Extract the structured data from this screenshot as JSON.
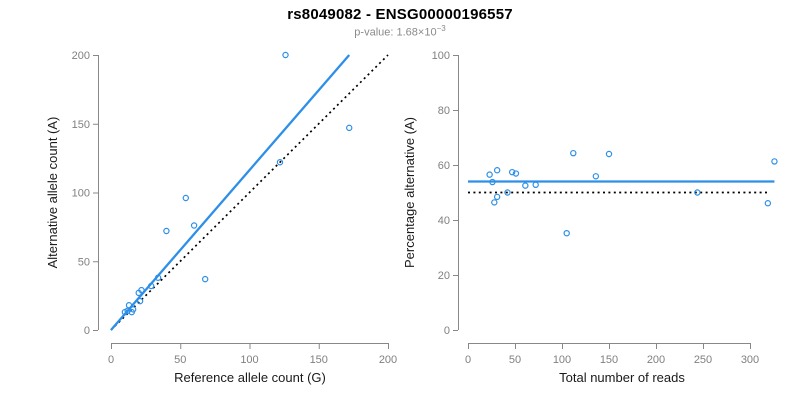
{
  "header": {
    "title": "rs8049082 - ENSG00000196557",
    "subtitle_prefix": "p-value: 1.68×10",
    "subtitle_exponent": "−3",
    "p_value": "1.68×10^-3"
  },
  "colors": {
    "blue": "#2D8FE8",
    "dotted_black": "#000000",
    "axis_gray": "#888888",
    "tick_label_gray": "#808080",
    "axis_title_color": "#1a1a1a",
    "subtitle_gray": "#8a8a8a"
  },
  "chart_data": [
    {
      "type": "scatter",
      "title": "",
      "xlabel": "Reference allele count (G)",
      "ylabel": "Alternative allele count (A)",
      "xlim": [
        0,
        200
      ],
      "ylim": [
        0,
        200
      ],
      "xticks": [
        0,
        50,
        100,
        150,
        200
      ],
      "yticks": [
        0,
        50,
        100,
        150,
        200
      ],
      "grid": false,
      "legend": "none",
      "marker": "open-circle",
      "x": [
        10,
        12,
        15,
        16,
        13,
        21,
        20,
        22,
        29,
        34,
        40,
        54,
        60,
        68,
        122,
        126,
        172
      ],
      "y": [
        13,
        14,
        13,
        15,
        18,
        21,
        27,
        29,
        32,
        38,
        72,
        96,
        76,
        37,
        122,
        200,
        147
      ],
      "lines": [
        {
          "name": "identity",
          "style": "dotted",
          "color": "#000000",
          "x1": 0,
          "y1": 0,
          "x2": 200,
          "y2": 200
        },
        {
          "name": "regression",
          "style": "solid",
          "color": "#2D8FE8",
          "x1": 0,
          "y1": 0,
          "x2": 172,
          "y2": 200
        }
      ]
    },
    {
      "type": "scatter",
      "title": "",
      "xlabel": "Total number of reads",
      "ylabel": "Percentage alternative (A)",
      "xlim": [
        0,
        300
      ],
      "ylim": [
        0,
        100
      ],
      "xticks": [
        0,
        50,
        100,
        150,
        200,
        250,
        300
      ],
      "yticks": [
        0,
        20,
        40,
        60,
        80,
        100
      ],
      "grid": false,
      "legend": "none",
      "marker": "open-circle",
      "x": [
        23,
        26,
        28,
        31,
        31,
        42,
        47,
        51,
        61,
        72,
        112,
        150,
        136,
        105,
        244,
        326,
        319
      ],
      "y": [
        56.5,
        53.8,
        46.4,
        48.4,
        58.1,
        50.0,
        57.4,
        56.9,
        52.5,
        52.8,
        64.3,
        64.0,
        55.9,
        35.2,
        50.0,
        61.3,
        46.1
      ],
      "lines": [
        {
          "name": "mean-percentage",
          "style": "solid",
          "color": "#2D8FE8",
          "x1": 0,
          "y1": 54,
          "x2": 326,
          "y2": 54
        },
        {
          "name": "expected-fifty",
          "style": "dotted",
          "color": "#000000",
          "x1": 0,
          "y1": 50,
          "x2": 320,
          "y2": 50
        }
      ]
    }
  ]
}
